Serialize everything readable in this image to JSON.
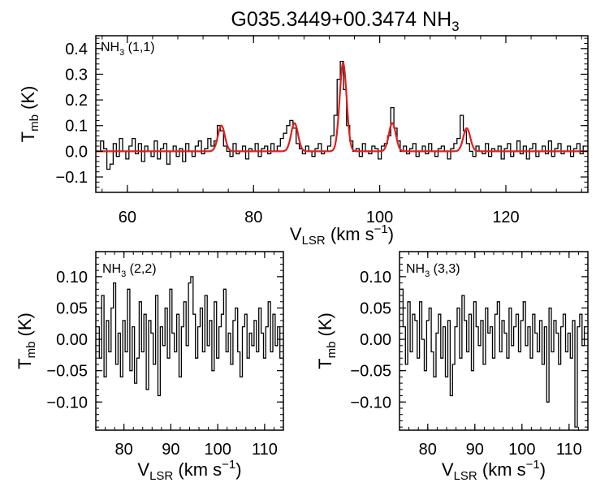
{
  "title": {
    "main": "G035.3449+00.3474 NH",
    "sub": "3"
  },
  "colors": {
    "fit": "#e0201b",
    "spectrum": "#000000"
  },
  "chart_data": [
    {
      "id": "p11",
      "type": "line",
      "label_main": "NH",
      "label_sub": "3",
      "label_rest": " (1,1)",
      "xlim": [
        55,
        133
      ],
      "ylim": [
        -0.16,
        0.45
      ],
      "xticks": [
        60,
        80,
        100,
        120
      ],
      "xtick_labels": [
        "60",
        "80",
        "100",
        "120"
      ],
      "yticks": [
        -0.1,
        0.0,
        0.1,
        0.2,
        0.3,
        0.4
      ],
      "ytick_labels": [
        "−0.1",
        "0.0",
        "0.1",
        "0.2",
        "0.3",
        "0.4"
      ],
      "xlabel": {
        "main": "V",
        "sub": "LSR",
        "mid": " (km s",
        "sup": "−1",
        "end": ")"
      },
      "ylabel": {
        "main": "T",
        "sub": "mb",
        "rest": " (K)"
      },
      "fit_components": [
        {
          "center": 74.9,
          "amp": 0.1,
          "sigma": 0.55
        },
        {
          "center": 86.5,
          "amp": 0.11,
          "sigma": 0.55
        },
        {
          "center": 94.2,
          "amp": 0.345,
          "sigma": 0.55
        },
        {
          "center": 102.0,
          "amp": 0.11,
          "sigma": 0.55
        },
        {
          "center": 113.8,
          "amp": 0.09,
          "sigma": 0.55
        }
      ],
      "spectrum": {
        "x": [
          55.5,
          56.0,
          56.5,
          57.0,
          57.5,
          58.0,
          58.5,
          59.0,
          59.5,
          60.0,
          60.5,
          61.0,
          61.5,
          62.0,
          62.5,
          63.0,
          63.5,
          64.0,
          64.5,
          65.0,
          65.5,
          66.0,
          66.5,
          67.0,
          67.5,
          68.0,
          68.5,
          69.0,
          69.5,
          70.0,
          70.5,
          71.0,
          71.5,
          72.0,
          72.5,
          73.0,
          73.5,
          74.0,
          74.5,
          75.0,
          75.5,
          76.0,
          76.5,
          77.0,
          77.5,
          78.0,
          78.5,
          79.0,
          79.5,
          80.0,
          80.5,
          81.0,
          81.5,
          82.0,
          82.5,
          83.0,
          83.5,
          84.0,
          84.5,
          85.0,
          85.5,
          86.0,
          86.5,
          87.0,
          87.5,
          88.0,
          88.5,
          89.0,
          89.5,
          90.0,
          90.5,
          91.0,
          91.5,
          92.0,
          92.5,
          93.0,
          93.5,
          94.0,
          94.5,
          95.0,
          95.5,
          96.0,
          96.5,
          97.0,
          97.5,
          98.0,
          98.5,
          99.0,
          99.5,
          100.0,
          100.5,
          101.0,
          101.5,
          102.0,
          102.5,
          103.0,
          103.5,
          104.0,
          104.5,
          105.0,
          105.5,
          106.0,
          106.5,
          107.0,
          107.5,
          108.0,
          108.5,
          109.0,
          109.5,
          110.0,
          110.5,
          111.0,
          111.5,
          112.0,
          112.5,
          113.0,
          113.5,
          114.0,
          114.5,
          115.0,
          115.5,
          116.0,
          116.5,
          117.0,
          117.5,
          118.0,
          118.5,
          119.0,
          119.5,
          120.0,
          120.5,
          121.0,
          121.5,
          122.0,
          122.5,
          123.0,
          123.5,
          124.0,
          124.5,
          125.0,
          125.5,
          126.0,
          126.5,
          127.0,
          127.5,
          128.0,
          128.5,
          129.0,
          129.5,
          130.0,
          130.5,
          131.0,
          131.5,
          132.0,
          132.5
        ],
        "y": [
          0.0,
          0.04,
          0.01,
          -0.07,
          -0.05,
          0.03,
          -0.02,
          0.05,
          0.0,
          -0.03,
          0.02,
          0.05,
          -0.01,
          0.03,
          -0.04,
          0.02,
          0.0,
          -0.02,
          0.04,
          -0.03,
          0.01,
          0.03,
          -0.05,
          0.0,
          0.02,
          -0.02,
          0.01,
          -0.04,
          0.03,
          0.0,
          -0.02,
          0.02,
          0.04,
          -0.01,
          0.01,
          0.05,
          0.02,
          0.04,
          0.1,
          0.08,
          0.02,
          0.0,
          -0.02,
          0.03,
          -0.01,
          0.0,
          0.02,
          -0.03,
          0.01,
          0.0,
          0.03,
          -0.02,
          0.01,
          0.02,
          -0.01,
          0.03,
          0.0,
          0.02,
          0.05,
          0.07,
          0.1,
          0.12,
          0.09,
          0.03,
          0.01,
          -0.01,
          0.02,
          0.0,
          -0.02,
          0.01,
          0.03,
          -0.01,
          0.0,
          0.02,
          0.06,
          0.14,
          0.28,
          0.35,
          0.24,
          0.1,
          0.04,
          0.0,
          0.01,
          -0.02,
          0.03,
          0.0,
          -0.01,
          0.02,
          0.01,
          -0.03,
          0.02,
          0.03,
          0.06,
          0.17,
          0.09,
          0.04,
          0.0,
          0.02,
          -0.01,
          0.01,
          0.03,
          -0.02,
          0.0,
          0.02,
          -0.01,
          0.03,
          0.0,
          -0.02,
          0.01,
          0.02,
          0.0,
          -0.03,
          0.01,
          0.03,
          0.05,
          0.14,
          0.08,
          0.03,
          0.0,
          -0.02,
          0.02,
          0.0,
          -0.01,
          0.03,
          -0.02,
          0.01,
          0.0,
          0.02,
          -0.03,
          0.01,
          0.03,
          -0.02,
          0.0,
          0.04,
          -0.01,
          0.02,
          -0.03,
          0.01,
          0.03,
          -0.02,
          0.0,
          0.02,
          -0.01,
          0.04,
          -0.02,
          0.01,
          0.03,
          -0.01,
          0.0,
          0.02,
          -0.02,
          0.01,
          0.03,
          -0.01,
          0.02
        ]
      }
    },
    {
      "id": "p22",
      "type": "line",
      "label_main": "NH",
      "label_sub": "3",
      "label_rest": " (2,2)",
      "xlim": [
        74,
        114
      ],
      "ylim": [
        -0.145,
        0.14
      ],
      "xticks": [
        80,
        90,
        100,
        110
      ],
      "xtick_labels": [
        "80",
        "90",
        "100",
        "110"
      ],
      "yticks": [
        -0.1,
        -0.05,
        0.0,
        0.05,
        0.1
      ],
      "ytick_labels": [
        "−0.10",
        "−0.05",
        "0.00",
        "0.05",
        "0.10"
      ],
      "xlabel": {
        "main": "V",
        "sub": "LSR",
        "mid": " (km s",
        "sup": "−1",
        "end": ")"
      },
      "ylabel": {
        "main": "T",
        "sub": "mb",
        "rest": " (K)"
      },
      "spectrum": {
        "x": [
          74.5,
          75.0,
          75.5,
          76.0,
          76.5,
          77.0,
          77.5,
          78.0,
          78.5,
          79.0,
          79.5,
          80.0,
          80.5,
          81.0,
          81.5,
          82.0,
          82.5,
          83.0,
          83.5,
          84.0,
          84.5,
          85.0,
          85.5,
          86.0,
          86.5,
          87.0,
          87.5,
          88.0,
          88.5,
          89.0,
          89.5,
          90.0,
          90.5,
          91.0,
          91.5,
          92.0,
          92.5,
          93.0,
          93.5,
          94.0,
          94.5,
          95.0,
          95.5,
          96.0,
          96.5,
          97.0,
          97.5,
          98.0,
          98.5,
          99.0,
          99.5,
          100.0,
          100.5,
          101.0,
          101.5,
          102.0,
          102.5,
          103.0,
          103.5,
          104.0,
          104.5,
          105.0,
          105.5,
          106.0,
          106.5,
          107.0,
          107.5,
          108.0,
          108.5,
          109.0,
          109.5,
          110.0,
          110.5,
          111.0,
          111.5,
          112.0,
          112.5,
          113.0,
          113.5
        ],
        "y": [
          0.02,
          -0.03,
          0.07,
          -0.06,
          0.03,
          -0.02,
          0.05,
          0.09,
          -0.04,
          0.01,
          -0.06,
          0.03,
          -0.02,
          0.08,
          -0.05,
          0.02,
          -0.07,
          -0.03,
          0.06,
          -0.02,
          0.04,
          -0.08,
          0.03,
          0.01,
          -0.04,
          0.07,
          -0.09,
          0.02,
          -0.01,
          0.05,
          -0.03,
          0.08,
          0.01,
          -0.02,
          0.04,
          -0.06,
          0.02,
          0.06,
          -0.01,
          0.09,
          0.1,
          0.04,
          -0.03,
          0.02,
          0.05,
          -0.02,
          0.07,
          -0.01,
          0.03,
          -0.05,
          0.06,
          -0.03,
          0.02,
          0.04,
          0.08,
          -0.02,
          0.01,
          -0.04,
          0.03,
          0.05,
          -0.02,
          -0.06,
          0.02,
          0.04,
          -0.03,
          0.01,
          -0.01,
          0.03,
          -0.02,
          0.05,
          0.01,
          -0.03,
          0.02,
          0.06,
          -0.02,
          0.04,
          -0.01,
          0.02,
          -0.03
        ]
      }
    },
    {
      "id": "p33",
      "type": "line",
      "label_main": "NH",
      "label_sub": "3",
      "label_rest": " (3,3)",
      "xlim": [
        74,
        114
      ],
      "ylim": [
        -0.145,
        0.14
      ],
      "xticks": [
        80,
        90,
        100,
        110
      ],
      "xtick_labels": [
        "80",
        "90",
        "100",
        "110"
      ],
      "yticks": [
        -0.1,
        -0.05,
        0.0,
        0.05,
        0.1
      ],
      "ytick_labels": [
        "−0.10",
        "−0.05",
        "0.00",
        "0.05",
        "0.10"
      ],
      "xlabel": {
        "main": "V",
        "sub": "LSR",
        "mid": " (km s",
        "sup": "−1",
        "end": ")"
      },
      "ylabel": {
        "main": "T",
        "sub": "mb",
        "rest": " (K)"
      },
      "spectrum": {
        "x": [
          74.5,
          75.0,
          75.5,
          76.0,
          76.5,
          77.0,
          77.5,
          78.0,
          78.5,
          79.0,
          79.5,
          80.0,
          80.5,
          81.0,
          81.5,
          82.0,
          82.5,
          83.0,
          83.5,
          84.0,
          84.5,
          85.0,
          85.5,
          86.0,
          86.5,
          87.0,
          87.5,
          88.0,
          88.5,
          89.0,
          89.5,
          90.0,
          90.5,
          91.0,
          91.5,
          92.0,
          92.5,
          93.0,
          93.5,
          94.0,
          94.5,
          95.0,
          95.5,
          96.0,
          96.5,
          97.0,
          97.5,
          98.0,
          98.5,
          99.0,
          99.5,
          100.0,
          100.5,
          101.0,
          101.5,
          102.0,
          102.5,
          103.0,
          103.5,
          104.0,
          104.5,
          105.0,
          105.5,
          106.0,
          106.5,
          107.0,
          107.5,
          108.0,
          108.5,
          109.0,
          109.5,
          110.0,
          110.5,
          111.0,
          111.5,
          112.0,
          112.5,
          113.0,
          113.5
        ],
        "y": [
          0.08,
          0.02,
          -0.04,
          0.06,
          -0.02,
          0.04,
          0.03,
          -0.03,
          0.06,
          0.0,
          -0.05,
          0.03,
          0.05,
          -0.02,
          -0.06,
          0.01,
          0.04,
          -0.03,
          0.02,
          -0.06,
          0.03,
          -0.09,
          -0.04,
          0.02,
          0.05,
          -0.03,
          0.07,
          0.03,
          -0.02,
          0.04,
          -0.05,
          0.06,
          0.02,
          -0.01,
          0.03,
          -0.04,
          0.05,
          0.01,
          0.02,
          -0.03,
          0.04,
          0.06,
          -0.02,
          0.03,
          0.01,
          -0.03,
          0.05,
          -0.01,
          0.02,
          0.04,
          -0.02,
          0.03,
          0.06,
          -0.01,
          0.02,
          -0.03,
          0.04,
          0.01,
          -0.02,
          0.03,
          -0.04,
          0.02,
          -0.1,
          0.05,
          -0.02,
          0.03,
          0.01,
          -0.04,
          0.02,
          0.04,
          -0.02,
          0.01,
          -0.03,
          0.03,
          -0.14,
          0.02,
          0.04,
          -0.01,
          0.02
        ]
      }
    }
  ]
}
